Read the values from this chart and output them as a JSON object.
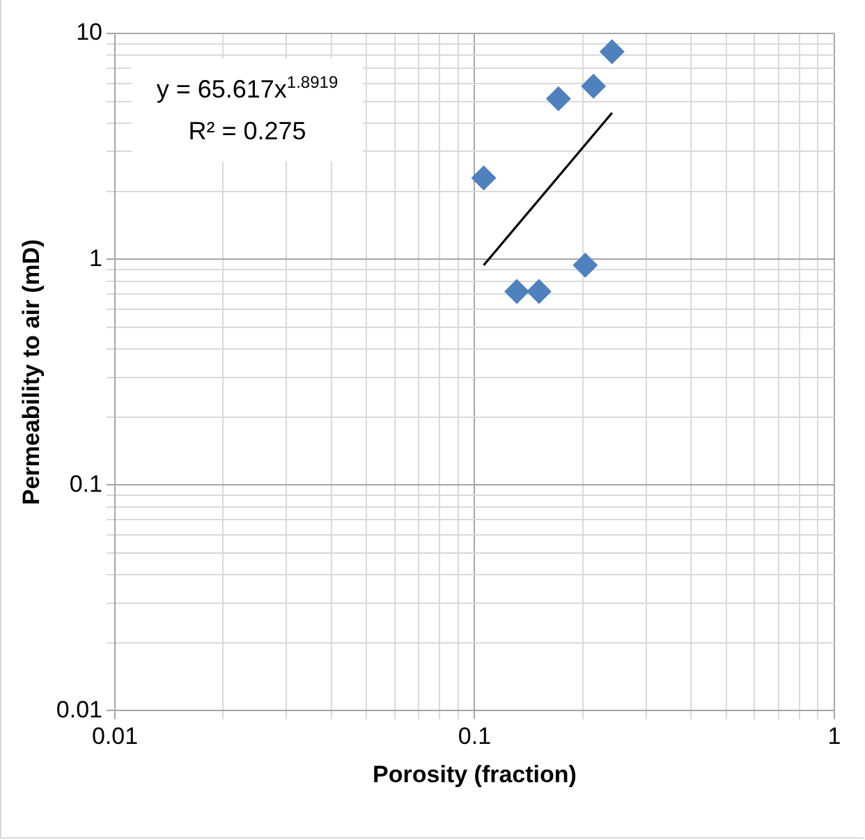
{
  "chart_data": {
    "type": "scatter",
    "xlabel": "Porosity (fraction)",
    "ylabel": "Permeability to air (mD)",
    "log": "xy",
    "grid": true,
    "legend": false,
    "xlim": [
      0.01,
      1
    ],
    "ylim": [
      0.01,
      10
    ],
    "xticks": [
      0.01,
      {
        "value": 0.02,
        "label": null
      },
      {
        "value": 0.03,
        "label": null
      },
      {
        "value": 0.04,
        "label": null
      },
      {
        "value": 0.05,
        "label": null
      },
      {
        "value": 0.06,
        "label": null
      },
      {
        "value": 0.07,
        "label": null
      },
      {
        "value": 0.08,
        "label": null
      },
      {
        "value": 0.09,
        "label": null
      },
      0.1,
      {
        "value": 0.2,
        "label": null
      },
      {
        "value": 0.3,
        "label": null
      },
      {
        "value": 0.4,
        "label": null
      },
      {
        "value": 0.5,
        "label": null
      },
      {
        "value": 0.6,
        "label": null
      },
      {
        "value": 0.7,
        "label": null
      },
      {
        "value": 0.8,
        "label": null
      },
      {
        "value": 0.9,
        "label": null
      },
      1
    ],
    "yticks": [
      0.01,
      {
        "value": 0.02,
        "label": null
      },
      {
        "value": 0.03,
        "label": null
      },
      {
        "value": 0.04,
        "label": null
      },
      {
        "value": 0.05,
        "label": null
      },
      {
        "value": 0.06,
        "label": null
      },
      {
        "value": 0.07,
        "label": null
      },
      {
        "value": 0.08,
        "label": null
      },
      {
        "value": 0.09,
        "label": null
      },
      0.1,
      {
        "value": 0.2,
        "label": null
      },
      {
        "value": 0.3,
        "label": null
      },
      {
        "value": 0.4,
        "label": null
      },
      {
        "value": 0.5,
        "label": null
      },
      {
        "value": 0.6,
        "label": null
      },
      {
        "value": 0.7,
        "label": null
      },
      {
        "value": 0.8,
        "label": null
      },
      {
        "value": 0.9,
        "label": null
      },
      1,
      {
        "value": 2,
        "label": null
      },
      {
        "value": 3,
        "label": null
      },
      {
        "value": 4,
        "label": null
      },
      {
        "value": 5,
        "label": null
      },
      {
        "value": 6,
        "label": null
      },
      {
        "value": 7,
        "label": null
      },
      {
        "value": 8,
        "label": null
      },
      {
        "value": 9,
        "label": null
      },
      10
    ],
    "series": [
      {
        "marker": "diamond",
        "color": "#4f81bd",
        "x": [
          0.241,
          0.214,
          0.171,
          0.106,
          0.203,
          0.131,
          0.151
        ],
        "values": [
          8.3,
          5.84,
          5.14,
          2.29,
          0.94,
          0.72,
          0.72
        ]
      },
      {
        "type": "line",
        "marker": "none",
        "color": "#000000",
        "x": [
          0.106,
          0.241
        ],
        "values": [
          0.94,
          4.45
        ]
      }
    ],
    "annotations": [
      "y = 65.617x$^{1.8919}$",
      "R² = 0.275"
    ]
  }
}
